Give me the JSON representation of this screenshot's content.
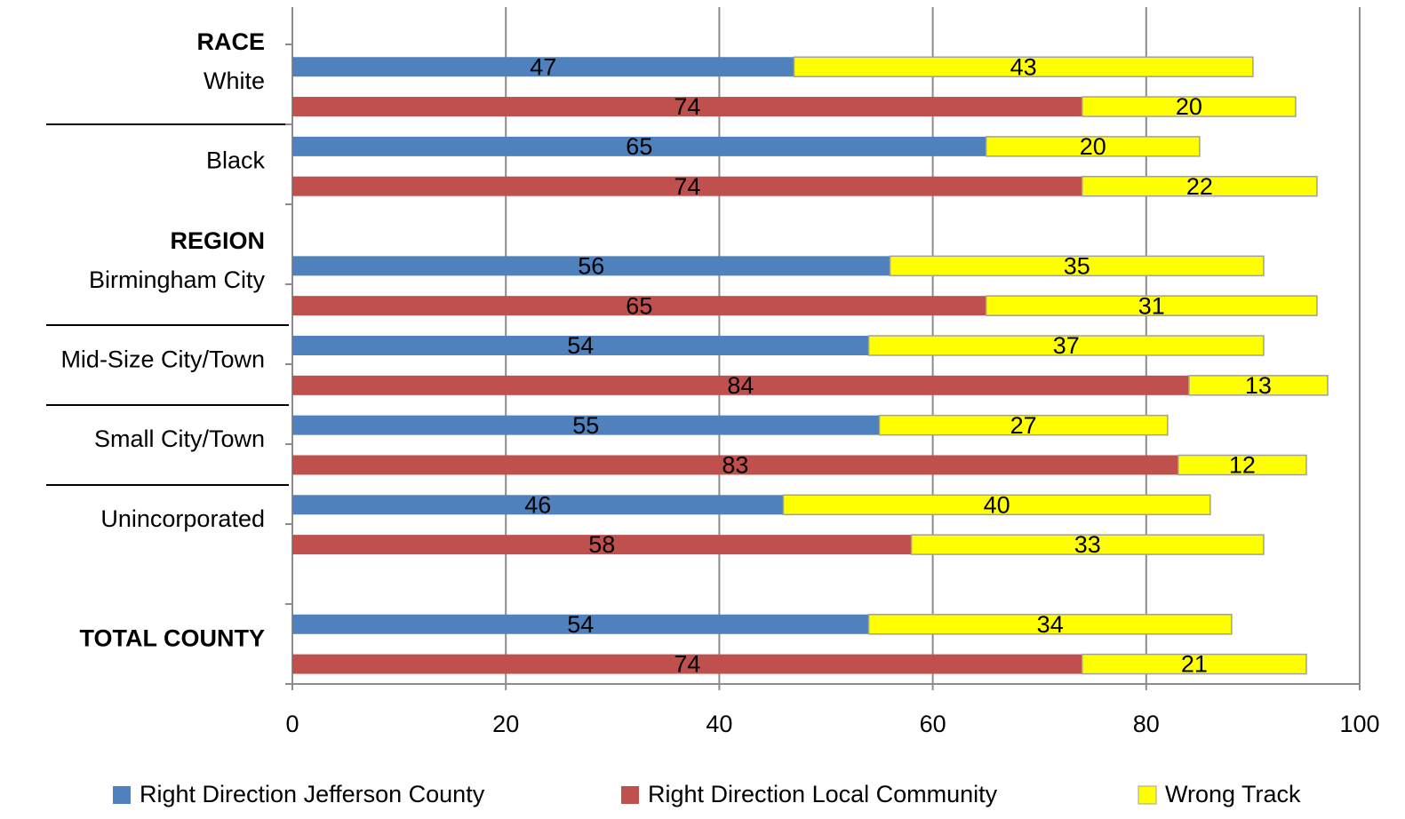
{
  "chart_data": {
    "type": "bar",
    "orientation": "horizontal",
    "stacked": true,
    "categories": [
      "White",
      "Black",
      "Birmingham City",
      "Mid-Size City/Town",
      "Small City/Town",
      "Unincorporated",
      "TOTAL COUNTY"
    ],
    "headings": [
      "RACE",
      null,
      "REGION",
      null,
      null,
      null,
      null
    ],
    "series": [
      {
        "name": "Right Direction Jefferson County",
        "color": "#4f81bd",
        "values": [
          47,
          65,
          56,
          54,
          55,
          46,
          54
        ]
      },
      {
        "name": "Right Direction Local Community",
        "color": "#c0504d",
        "values": [
          74,
          74,
          65,
          84,
          83,
          58,
          74
        ]
      },
      {
        "name": "Wrong Track",
        "color": "#ffff00",
        "values": [
          [
            43,
            20
          ],
          [
            20,
            22
          ],
          [
            35,
            31
          ],
          [
            37,
            13
          ],
          [
            27,
            12
          ],
          [
            40,
            33
          ],
          [
            34,
            21
          ]
        ]
      }
    ],
    "xlim": [
      0,
      100
    ],
    "xticks": [
      0,
      20,
      40,
      60,
      80,
      100
    ],
    "grid": true,
    "legend": "bottom"
  }
}
